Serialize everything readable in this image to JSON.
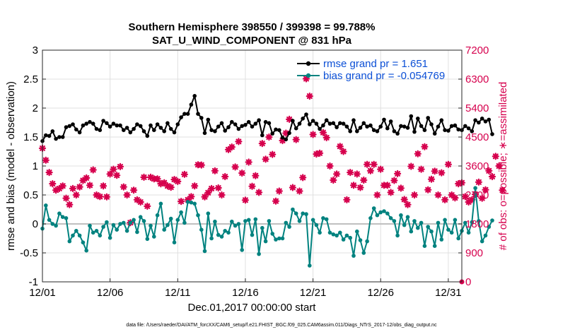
{
  "chart_data": {
    "type": "line",
    "title": "Southern Hemisphere 398550 / 399398 = 99.788%",
    "subtitle": "SAT_U_WIND_COMPONENT @ 831 hPa",
    "xlabel": "Dec.01,2017 00:00:00 start",
    "ylabel": "rmse and bias (model - observation)",
    "ylabel_right": "# of obs: o=possible; ∗=assimilated",
    "xlim": [
      0,
      31
    ],
    "ylim": [
      -1,
      3
    ],
    "ylim_right": [
      0,
      7200
    ],
    "x_ticks": [
      0,
      5,
      10,
      15,
      20,
      25,
      30
    ],
    "x_tick_labels": [
      "12/01",
      "12/06",
      "12/11",
      "12/16",
      "12/21",
      "12/26",
      "12/31"
    ],
    "y_ticks": [
      -1,
      -0.5,
      0,
      0.5,
      1,
      1.5,
      2,
      2.5,
      3
    ],
    "y_tick_labels": [
      "-1",
      "-0.5",
      "0",
      "0.5",
      "1",
      "1.5",
      "2",
      "2.5",
      "3"
    ],
    "y_ticks_right": [
      0,
      900,
      1800,
      2700,
      3600,
      4500,
      5400,
      6300,
      7200
    ],
    "y_tick_labels_right": [
      "0",
      "900",
      "1800",
      "2700",
      "3600",
      "4500",
      "5400",
      "6300",
      "7200"
    ],
    "legend_location": "top-right",
    "zero_line": 0,
    "x_step": 0.25,
    "series": [
      {
        "name": "rmse grand pr = 1.651",
        "color": "#000000",
        "marker": "circle",
        "values": [
          1.43,
          1.53,
          1.52,
          1.6,
          1.47,
          1.5,
          1.5,
          1.67,
          1.69,
          1.72,
          1.63,
          1.58,
          1.7,
          1.73,
          1.76,
          1.73,
          1.64,
          1.62,
          1.78,
          1.74,
          1.68,
          1.73,
          1.7,
          1.7,
          1.62,
          1.66,
          1.58,
          1.64,
          1.72,
          1.69,
          1.6,
          1.52,
          1.7,
          1.62,
          1.72,
          1.66,
          1.6,
          1.74,
          1.64,
          1.58,
          1.72,
          1.84,
          1.9,
          1.9,
          2.06,
          2.21,
          1.9,
          1.83,
          1.57,
          1.8,
          1.62,
          1.6,
          1.68,
          1.74,
          1.61,
          1.67,
          1.76,
          1.72,
          1.64,
          1.69,
          1.71,
          1.76,
          1.68,
          1.73,
          1.79,
          1.53,
          1.76,
          1.74,
          1.56,
          1.63,
          1.62,
          1.49,
          1.46,
          1.57,
          1.78,
          1.65,
          1.73,
          1.82,
          1.89,
          1.72,
          1.78,
          1.73,
          1.64,
          1.7,
          1.79,
          1.73,
          1.74,
          1.67,
          1.74,
          1.73,
          1.68,
          1.6,
          1.79,
          1.6,
          1.66,
          1.74,
          1.68,
          1.7,
          1.62,
          1.6,
          1.68,
          1.8,
          1.65,
          1.77,
          1.6,
          1.56,
          1.69,
          1.68,
          1.66,
          1.86,
          1.59,
          1.82,
          1.69,
          1.62,
          1.83,
          1.72,
          1.56,
          1.68,
          1.79,
          1.62,
          1.61,
          1.69,
          1.7,
          1.63,
          1.62,
          1.69,
          1.65,
          1.6,
          1.79,
          1.75,
          1.82,
          1.77,
          1.8,
          1.55
        ],
        "line_values": [
          1.43,
          1.53,
          1.52,
          1.6,
          1.47,
          1.5,
          1.5,
          1.67,
          1.69,
          1.72,
          1.63,
          1.58,
          1.7,
          1.73,
          1.76,
          1.73,
          1.64,
          1.62,
          1.78,
          1.74,
          1.68,
          1.73,
          1.7,
          1.7,
          1.62,
          1.66,
          1.58,
          1.64,
          1.72,
          1.69,
          1.6,
          1.52,
          1.7,
          1.62,
          1.72,
          1.66,
          1.6,
          1.74,
          1.64,
          1.58,
          1.72,
          1.84,
          1.9,
          1.9,
          2.06,
          2.21,
          1.9,
          1.83,
          1.57,
          1.8,
          1.62,
          1.6,
          1.68,
          1.74,
          1.61,
          1.67,
          1.76,
          1.72,
          1.64,
          1.69,
          1.71,
          1.76,
          1.68,
          1.73,
          1.79,
          1.53,
          1.76,
          1.74,
          1.56,
          1.63,
          1.62,
          1.49,
          1.46,
          1.57,
          1.78,
          1.65,
          1.73,
          1.82,
          1.89,
          1.72,
          1.78,
          1.73,
          1.64,
          1.7,
          1.79,
          1.73,
          1.74,
          1.67,
          1.74,
          1.73,
          1.68,
          1.6,
          1.79,
          1.6,
          1.66,
          1.74,
          1.68,
          1.7,
          1.62,
          1.6,
          1.68,
          1.8,
          1.65,
          1.77,
          1.6,
          1.56,
          1.69,
          1.68,
          1.66,
          1.86,
          1.59,
          1.82,
          1.69,
          1.62,
          1.83,
          1.72,
          1.56,
          1.68,
          1.79,
          1.62,
          1.61,
          1.69,
          1.7,
          1.63,
          1.62,
          1.69,
          1.65,
          1.6,
          1.79,
          1.75,
          1.82,
          1.77,
          1.8,
          1.55
        ]
      },
      {
        "name": "bias grand pr = -0.054769",
        "color": "#00827f",
        "marker": "circle",
        "values": [
          -0.08,
          0.32,
          0.07,
          0,
          -0.03,
          0.18,
          0.12,
          0.1,
          -0.3,
          -0.2,
          -0.12,
          -0.2,
          -0.32,
          -0.46,
          -0.03,
          -0.15,
          -0.12,
          -0.2,
          -0.05,
          0.03,
          -0.24,
          -0.02,
          -0.1,
          0,
          0.02,
          -0.12,
          0.02,
          0.07,
          -0.14,
          0.12,
          0.05,
          -0.26,
          -0.03,
          -0.22,
          0.15,
          0.35,
          -0.1,
          -0.02,
          0.09,
          -0.32,
          0.07,
          0.2,
          0.02,
          0.38,
          0.37,
          0.35,
          0.15,
          -0.1,
          -0.47,
          0.18,
          -0.25,
          0.04,
          -0.19,
          -0.22,
          -0.12,
          -0.15,
          0.04,
          -0.03,
          0,
          -0.45,
          0.05,
          0.07,
          -0.19,
          0.08,
          -0.52,
          -0.07,
          -0.3,
          0.05,
          -0.17,
          -0.27,
          -0.25,
          -0.25,
          0.02,
          -0.05,
          0.25,
          0.18,
          0.05,
          0.18,
          0.17,
          -0.72,
          0.07,
          -0.02,
          -0.15,
          0.1,
          0.08,
          -0.15,
          -0.18,
          -0.2,
          -0.15,
          -0.27,
          -0.2,
          -0.24,
          -0.55,
          -0.13,
          -0.28,
          -0.5,
          -0.3,
          0.1,
          0.27,
          0.15,
          0.2,
          0.22,
          0.18,
          0.1,
          0.05,
          -0.2,
          0.15,
          -0.02,
          0.12,
          -0.13,
          0.05,
          -0.07,
          0.02,
          -0.38,
          -0.05,
          -0.13,
          -0.38,
          0.02,
          -0.27,
          0.07,
          -0.1,
          -0.15,
          0.07,
          -0.25,
          -0.12,
          0.02,
          -0.15,
          0.03,
          0.62,
          0.05,
          -0.3,
          -0.2,
          -0.05,
          0.06
        ]
      }
    ],
    "counts_possible": [
      4150,
      3780,
      3400,
      3050,
      2850,
      2900,
      2980,
      2600,
      2400,
      2900,
      2700,
      2950,
      3150,
      3230,
      3000,
      3480,
      2700,
      2650,
      2980,
      2640,
      3350,
      3500,
      3310,
      3580,
      2950,
      2700,
      1840,
      2850,
      2550,
      2480,
      3250,
      2350,
      3250,
      3200,
      3200,
      3050,
      3080,
      2980,
      2940,
      3180,
      3120,
      2500,
      3340,
      2550,
      2650,
      2980,
      3640,
      3630,
      2640,
      2770,
      2900,
      3450,
      2920,
      2700,
      3270,
      4110,
      4190,
      3570,
      4360,
      3380,
      2540,
      3720,
      2970,
      3300,
      2780,
      4300,
      3810,
      4500,
      3960,
      2510,
      2820,
      4390,
      4620,
      5050,
      2930,
      4420,
      2820,
      3240,
      6310,
      5770,
      4580,
      3970,
      4000,
      4640,
      4480,
      3600,
      3160,
      3350,
      4210,
      4050,
      2550,
      3400,
      3000,
      3350,
      2930,
      3160,
      3650,
      3450,
      3650,
      2700,
      3500,
      3000,
      3000,
      2780,
      3150,
      3360,
      2910,
      2560,
      2400,
      3590,
      2700,
      3980,
      3500,
      4200,
      2860,
      3190,
      3440,
      2700,
      3390,
      2550,
      3650,
      2700,
      2610,
      3050,
      3080,
      2650,
      2480,
      2550,
      2720,
      3100,
      2600,
      2860,
      3450,
      3270,
      3900,
      3600,
      2850
    ]
  }
}
